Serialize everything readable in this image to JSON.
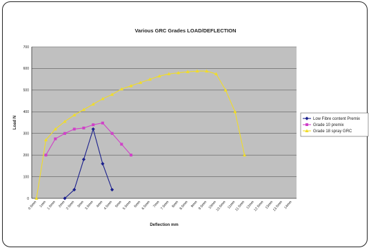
{
  "chart_data": {
    "type": "line",
    "title": "Various GRC Grades LOAD/DEFLECTION",
    "xlabel": "Deflection mm",
    "ylabel": "Load N",
    "ylim": [
      0,
      700
    ],
    "y_ticks": [
      0,
      100,
      200,
      300,
      400,
      500,
      600,
      700
    ],
    "categories": [
      "0.5mm",
      "1mm",
      "1.5mm",
      "2mm",
      "2.5mm",
      "3mm",
      "3.5mm",
      "4mm",
      "4.5mm",
      "5mm",
      "5.5mm",
      "6mm",
      "6.5mm",
      "7mm",
      "7.5mm",
      "8mm",
      "8.5mm",
      "9mm",
      "9.5mm",
      "10mm",
      "10.5mm",
      "11mm",
      "11.5mm",
      "12mm",
      "12.5mm",
      "13mm",
      "13.5mm",
      "14mm"
    ],
    "grid": true,
    "legend_position": "right",
    "series": [
      {
        "name": "Low Fibre content Premix",
        "color": "#1a1f8c",
        "marker": "diamond",
        "points": [
          [
            2.0,
            0
          ],
          [
            2.5,
            40
          ],
          [
            3.0,
            180
          ],
          [
            3.5,
            320
          ],
          [
            4.0,
            160
          ],
          [
            4.5,
            40
          ]
        ]
      },
      {
        "name": "Grade 10 premix",
        "color": "#d040c8",
        "marker": "square",
        "points": [
          [
            1.0,
            200
          ],
          [
            1.5,
            275
          ],
          [
            2.0,
            300
          ],
          [
            2.5,
            320
          ],
          [
            3.0,
            325
          ],
          [
            3.5,
            340
          ],
          [
            4.0,
            348
          ],
          [
            4.5,
            300
          ],
          [
            5.0,
            250
          ],
          [
            5.5,
            200
          ]
        ]
      },
      {
        "name": "Grade 18 spray GRC",
        "color": "#f0dc2a",
        "marker": "triangle",
        "points": [
          [
            0.5,
            0
          ],
          [
            1.0,
            270
          ],
          [
            1.5,
            320
          ],
          [
            2.0,
            355
          ],
          [
            2.5,
            385
          ],
          [
            3.0,
            410
          ],
          [
            3.5,
            435
          ],
          [
            4.0,
            460
          ],
          [
            4.5,
            480
          ],
          [
            5.0,
            505
          ],
          [
            5.5,
            520
          ],
          [
            6.0,
            535
          ],
          [
            6.5,
            550
          ],
          [
            7.0,
            565
          ],
          [
            7.5,
            575
          ],
          [
            8.0,
            580
          ],
          [
            8.5,
            585
          ],
          [
            9.0,
            588
          ],
          [
            9.5,
            588
          ],
          [
            10.0,
            575
          ],
          [
            10.5,
            500
          ],
          [
            11.0,
            400
          ],
          [
            11.5,
            200
          ]
        ]
      }
    ]
  }
}
